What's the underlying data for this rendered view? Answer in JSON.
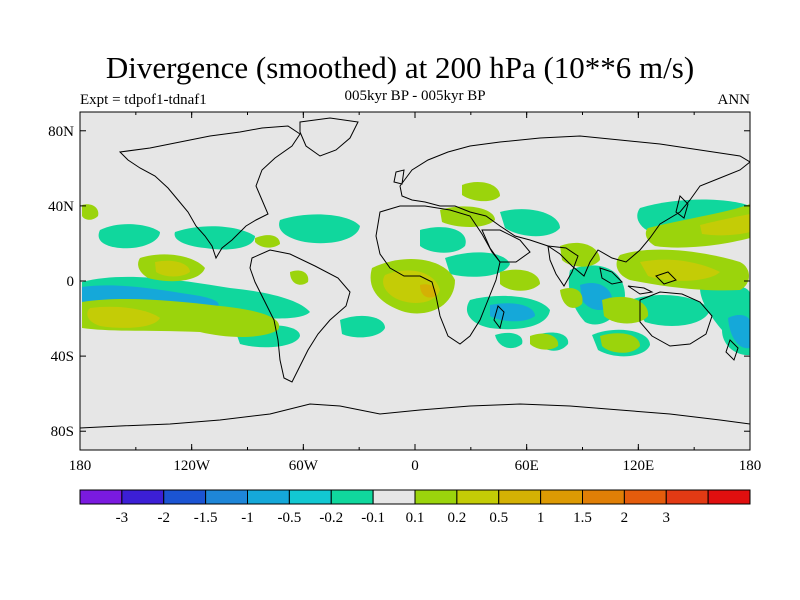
{
  "title": "Divergence (smoothed) at 200 hPa (10**6 m/s)",
  "experiment": "Expt = tdpof1-tdnaf1",
  "period": "005kyr BP - 005kyr BP",
  "season": "ANN",
  "map": {
    "ocean_color": "#e6e6e6",
    "coast_color": "#000000",
    "lon_ticks": [
      "180",
      "120W",
      "60W",
      "0",
      "60E",
      "120E",
      "180"
    ],
    "lat_ticks": [
      "80N",
      "40N",
      "0",
      "40S",
      "80S"
    ]
  },
  "colorbar": {
    "colors": [
      "#7a1adf",
      "#3c1fd6",
      "#1b54d3",
      "#1e86d8",
      "#15a8d9",
      "#12c8d2",
      "#10d79d",
      "#e6e6e6",
      "#9bd40c",
      "#c4cc06",
      "#d4b104",
      "#dd9a03",
      "#e07f06",
      "#e45c0c",
      "#e33a14",
      "#e00f0f"
    ],
    "labels": [
      "-3",
      "-2",
      "-1.5",
      "-1",
      "-0.5",
      "-0.2",
      "-0.1",
      "0.1",
      "0.2",
      "0.5",
      "1",
      "1.5",
      "2",
      "3"
    ]
  }
}
